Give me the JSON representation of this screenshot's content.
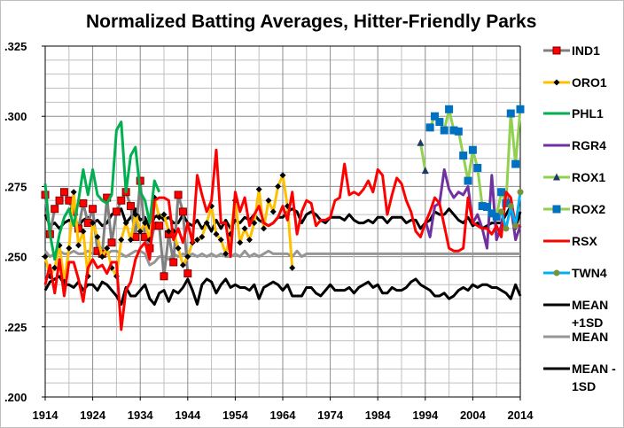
{
  "chart_data": {
    "type": "line",
    "title": "Normalized Batting Averages, Hitter-Friendly Parks",
    "xlabel": "",
    "ylabel": "",
    "xlim": [
      1914,
      2014
    ],
    "ylim": [
      0.2,
      0.325
    ],
    "x_ticks": [
      "1914",
      "1924",
      "1934",
      "1944",
      "1954",
      "1964",
      "1974",
      "1984",
      "1994",
      "2004",
      "2014"
    ],
    "y_ticks": [
      ".200",
      ".225",
      ".250",
      ".275",
      ".300",
      ".325"
    ],
    "grid": true,
    "legend_position": "right",
    "series": [
      {
        "name": "IND1",
        "color": "#808080",
        "marker": "square",
        "marker_color": "#ff0000",
        "start": 1914,
        "values": [
          0.272,
          0.258,
          0.267,
          0.27,
          0.273,
          0.27,
          0.266,
          0.26,
          0.269,
          0.262,
          0.267,
          0.252,
          0.251,
          0.271,
          0.255,
          0.266,
          0.27,
          0.273,
          0.268,
          0.257,
          0.277,
          0.257,
          0.253,
          0.261,
          0.261,
          0.243,
          0.258,
          0.248,
          0.272,
          0.266,
          0.244
        ]
      },
      {
        "name": "ORO1",
        "color": "#ffc000",
        "marker": "diamond",
        "marker_color": "#000000",
        "start": 1914,
        "values": [
          0.25,
          0.243,
          0.246,
          0.254,
          0.241,
          0.253,
          0.273,
          0.254,
          0.259,
          0.243,
          0.262,
          0.257,
          0.25,
          0.253,
          0.246,
          0.243,
          0.256,
          0.262,
          0.256,
          0.265,
          0.259,
          0.262,
          0.256,
          0.271,
          0.264,
          0.265,
          0.259,
          0.259,
          0.253,
          0.247,
          0.25,
          0.255,
          0.256,
          0.257,
          0.262,
          0.268,
          0.258,
          0.256,
          0.251,
          0.258,
          0.27,
          0.255,
          0.26,
          0.256,
          0.262,
          0.274,
          0.26,
          0.27,
          0.266,
          0.275,
          0.279,
          0.268,
          0.246
        ]
      },
      {
        "name": "PHL1",
        "color": "#00b050",
        "marker": "none",
        "start": 1914,
        "values": [
          0.276,
          0.258,
          0.249,
          0.258,
          0.264,
          0.267,
          0.261,
          0.27,
          0.281,
          0.272,
          0.281,
          0.272,
          0.27,
          0.269,
          0.272,
          0.295,
          0.298,
          0.273,
          0.286,
          0.289,
          0.273,
          0.27,
          0.262,
          0.277,
          0.273
        ]
      },
      {
        "name": "RGR4",
        "color": "#7030a0",
        "marker": "none",
        "start": 1994,
        "values": [
          0.263,
          0.257,
          0.268,
          0.269,
          0.281,
          0.274,
          0.271,
          0.273,
          0.272,
          0.275,
          0.262,
          0.265,
          0.26,
          0.253,
          0.279,
          0.256,
          0.261,
          0.272,
          0.268,
          0.256,
          0.261
        ]
      },
      {
        "name": "ROX1",
        "color": "#92d050",
        "marker": "triangle",
        "marker_color": "#1f3864",
        "start": 1993,
        "values": [
          0.2905,
          0.2806
        ]
      },
      {
        "name": "ROX2",
        "color": "#92d050",
        "marker": "square",
        "marker_color": "#0070c0",
        "start": 1995,
        "values": [
          0.296,
          0.3,
          0.298,
          0.295,
          0.3025,
          0.295,
          0.2946,
          0.286,
          0.277,
          0.288,
          0.2816,
          0.268,
          0.2677,
          0.2654,
          0.2642,
          0.273,
          0.269,
          0.301,
          0.283,
          0.3025
        ]
      },
      {
        "name": "RSX",
        "color": "#ff0000",
        "marker": "none",
        "start": 1914,
        "values": [
          0.24,
          0.247,
          0.237,
          0.249,
          0.236,
          0.248,
          0.248,
          0.242,
          0.234,
          0.246,
          0.249,
          0.246,
          0.247,
          0.244,
          0.248,
          0.248,
          0.224,
          0.238,
          0.241,
          0.249,
          0.253,
          0.255,
          0.249,
          0.27,
          0.271,
          0.271,
          0.27,
          0.256,
          0.26,
          0.255,
          0.262,
          0.255,
          0.279,
          0.272,
          0.266,
          0.27,
          0.288,
          0.262,
          0.262,
          0.25,
          0.273,
          0.266,
          0.271,
          0.261,
          0.265,
          0.268,
          0.262,
          0.261,
          0.262,
          0.264,
          0.268,
          0.263,
          0.273,
          0.258,
          0.266,
          0.27,
          0.269,
          0.261,
          0.263,
          0.263,
          0.264,
          0.27,
          0.271,
          0.283,
          0.272,
          0.273,
          0.272,
          0.274,
          0.277,
          0.273,
          0.281,
          0.279,
          0.265,
          0.272,
          0.278,
          0.276,
          0.27,
          0.266,
          0.259,
          0.257,
          0.262,
          0.266,
          0.271,
          0.269,
          0.261,
          0.253,
          0.252,
          0.252,
          0.253,
          0.271,
          0.262,
          0.261,
          0.26,
          0.26,
          0.258,
          0.261,
          0.257,
          0.273,
          0.271,
          0.261,
          0.261
        ]
      },
      {
        "name": "TWN4",
        "color": "#00b0f0",
        "marker": "circle",
        "marker_color": "#77933c",
        "start": 2010,
        "values": [
          0.266,
          0.26,
          0.268,
          0.261,
          0.273
        ]
      },
      {
        "name": "MEAN +1SD",
        "color": "#000000",
        "marker": "none",
        "start": 1914,
        "values": [
          0.265,
          0.261,
          0.262,
          0.26,
          0.262,
          0.263,
          0.262,
          0.261,
          0.263,
          0.264,
          0.262,
          0.263,
          0.261,
          0.262,
          0.265,
          0.266,
          0.267,
          0.262,
          0.264,
          0.267,
          0.263,
          0.264,
          0.26,
          0.264,
          0.265,
          0.263,
          0.264,
          0.262,
          0.262,
          0.265,
          0.262,
          0.261,
          0.263,
          0.26,
          0.262,
          0.259,
          0.263,
          0.26,
          0.263,
          0.26,
          0.263,
          0.262,
          0.264,
          0.263,
          0.265,
          0.263,
          0.262,
          0.261,
          0.262,
          0.264,
          0.264,
          0.266,
          0.267,
          0.266,
          0.262,
          0.265,
          0.266,
          0.265,
          0.263,
          0.262,
          0.264,
          0.264,
          0.264,
          0.263,
          0.265,
          0.263,
          0.262,
          0.262,
          0.263,
          0.262,
          0.264,
          0.264,
          0.262,
          0.264,
          0.264,
          0.264,
          0.262,
          0.263,
          0.263,
          0.26,
          0.262,
          0.263,
          0.266,
          0.265,
          0.265,
          0.267,
          0.265,
          0.263,
          0.262,
          0.264,
          0.261,
          0.262,
          0.26,
          0.261,
          0.262,
          0.262,
          0.262,
          0.265,
          0.268,
          0.26,
          0.266
        ]
      },
      {
        "name": "MEAN",
        "color": "#969696",
        "marker": "none",
        "start": 1914,
        "values": [
          0.252,
          0.25,
          0.251,
          0.252,
          0.251,
          0.251,
          0.252,
          0.251,
          0.251,
          0.252,
          0.251,
          0.251,
          0.252,
          0.251,
          0.252,
          0.252,
          0.251,
          0.25,
          0.251,
          0.252,
          0.252,
          0.251,
          0.247,
          0.248,
          0.25,
          0.25,
          0.249,
          0.251,
          0.25,
          0.251,
          0.25,
          0.251,
          0.25,
          0.251,
          0.25,
          0.251,
          0.25,
          0.251,
          0.25,
          0.25,
          0.251,
          0.25,
          0.252,
          0.25,
          0.251,
          0.25,
          0.251,
          0.252,
          0.251,
          0.251,
          0.251,
          0.251,
          0.25,
          0.252,
          0.25,
          0.251,
          0.251,
          0.251,
          0.251,
          0.251,
          0.251,
          0.251,
          0.251,
          0.251,
          0.251,
          0.251,
          0.251,
          0.251,
          0.251,
          0.251,
          0.251,
          0.251,
          0.251,
          0.251,
          0.251,
          0.251,
          0.251,
          0.251,
          0.251,
          0.251,
          0.251,
          0.251,
          0.251,
          0.251,
          0.251,
          0.251,
          0.251,
          0.251,
          0.251,
          0.251,
          0.251,
          0.251,
          0.251,
          0.251,
          0.251,
          0.251,
          0.251,
          0.251,
          0.251,
          0.251,
          0.251
        ]
      },
      {
        "name": "MEAN - 1SD",
        "color": "#000000",
        "marker": "none",
        "start": 1914,
        "values": [
          0.238,
          0.241,
          0.242,
          0.243,
          0.24,
          0.24,
          0.239,
          0.241,
          0.238,
          0.24,
          0.24,
          0.238,
          0.241,
          0.24,
          0.238,
          0.236,
          0.233,
          0.239,
          0.236,
          0.236,
          0.238,
          0.24,
          0.235,
          0.233,
          0.237,
          0.238,
          0.234,
          0.238,
          0.237,
          0.239,
          0.242,
          0.238,
          0.233,
          0.24,
          0.242,
          0.241,
          0.237,
          0.24,
          0.242,
          0.239,
          0.24,
          0.239,
          0.239,
          0.238,
          0.24,
          0.235,
          0.239,
          0.24,
          0.241,
          0.24,
          0.238,
          0.24,
          0.236,
          0.236,
          0.236,
          0.239,
          0.239,
          0.237,
          0.236,
          0.238,
          0.24,
          0.238,
          0.238,
          0.238,
          0.239,
          0.237,
          0.239,
          0.24,
          0.241,
          0.239,
          0.24,
          0.237,
          0.237,
          0.239,
          0.238,
          0.238,
          0.239,
          0.241,
          0.242,
          0.24,
          0.239,
          0.238,
          0.236,
          0.236,
          0.237,
          0.235,
          0.236,
          0.238,
          0.239,
          0.238,
          0.24,
          0.239,
          0.24,
          0.24,
          0.239,
          0.239,
          0.238,
          0.237,
          0.235,
          0.24,
          0.236
        ]
      }
    ]
  }
}
